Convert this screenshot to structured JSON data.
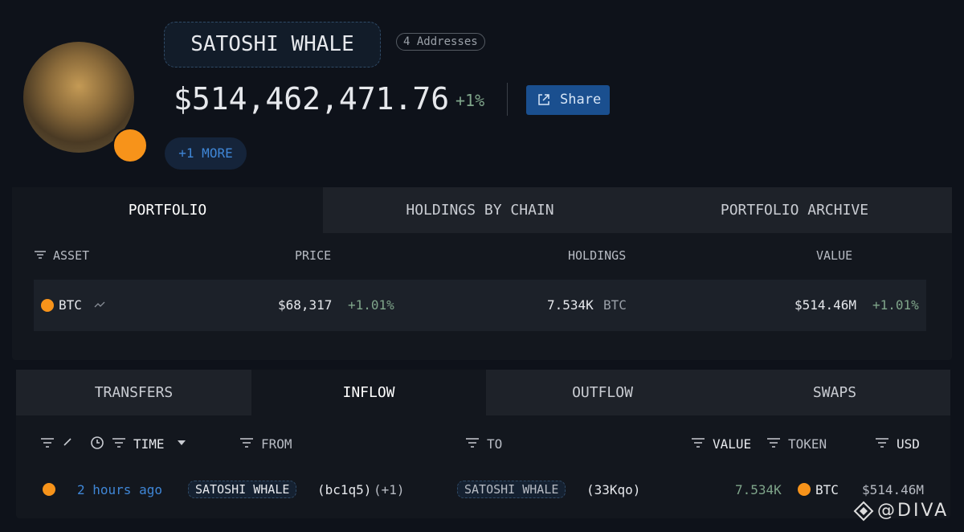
{
  "profile": {
    "name": "SATOSHI WHALE",
    "addresses": "4 Addresses",
    "balance": "$514,462,471.76",
    "change": "+1%",
    "share": "Share",
    "more": "+1 MORE"
  },
  "portfolio_tabs": [
    "PORTFOLIO",
    "HOLDINGS BY CHAIN",
    "PORTFOLIO ARCHIVE"
  ],
  "portfolio_table": {
    "headers": [
      "ASSET",
      "PRICE",
      "HOLDINGS",
      "VALUE"
    ],
    "rows": [
      {
        "asset": "BTC",
        "price": "$68,317",
        "price_change": "+1.01%",
        "holdings": "7.534K",
        "holdings_unit": "BTC",
        "value": "$514.46M",
        "value_change": "+1.01%"
      }
    ]
  },
  "flow_tabs": [
    "TRANSFERS",
    "INFLOW",
    "OUTFLOW",
    "SWAPS"
  ],
  "flow_table": {
    "headers": [
      "TIME",
      "FROM",
      "TO",
      "VALUE",
      "TOKEN",
      "USD"
    ],
    "rows": [
      {
        "time": "2 hours ago",
        "from_name": "SATOSHI WHALE",
        "from_address": "(bc1q5)",
        "from_more": "(+1)",
        "to_name": "SATOSHI WHALE",
        "to_address": "(33Kqo)",
        "value": "7.534K",
        "token": "BTC",
        "usd": "$514.46M"
      }
    ]
  },
  "watermark": "@DIVA"
}
